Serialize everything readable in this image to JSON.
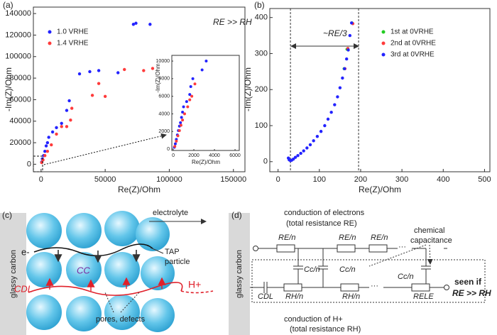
{
  "chart_data": [
    {
      "type": "scatter",
      "panel": "(a)",
      "xlabel": "Re(Z)/Ohm",
      "ylabel": "-Im(Z)/Ohm",
      "annotation": "RE >> RH",
      "xlim": [
        -6000,
        159000
      ],
      "ylim": [
        -7000,
        146000
      ],
      "xticks": [
        0,
        50000,
        100000,
        150000
      ],
      "yticks": [
        0,
        20000,
        40000,
        60000,
        80000,
        100000,
        120000,
        140000
      ],
      "legend": "upper left",
      "series": [
        {
          "name": "1.0 VRHE",
          "color": "#2323ff",
          "x": [
            500,
            1000,
            2000,
            3000,
            4000,
            5000,
            6000,
            9000,
            12000,
            16000,
            20000,
            22000,
            30000,
            38000,
            45000,
            60000,
            72000,
            74000,
            85000
          ],
          "values": [
            2000,
            5000,
            8000,
            12000,
            17000,
            20000,
            25000,
            30000,
            34000,
            38000,
            50000,
            59000,
            84000,
            86000,
            87000,
            85000,
            130000,
            131000,
            130000
          ]
        },
        {
          "name": "1.4 VRHE",
          "color": "#ff3b3b",
          "x": [
            500,
            1500,
            3000,
            5000,
            8000,
            12000,
            16000,
            20000,
            23000,
            24000,
            40000,
            45000,
            50000,
            65000,
            80000,
            87000
          ],
          "values": [
            1500,
            4000,
            8000,
            12000,
            18000,
            28000,
            35000,
            35000,
            41000,
            52000,
            64000,
            75000,
            63000,
            88000,
            87000,
            89000
          ]
        }
      ]
    },
    {
      "type": "scatter",
      "xlabel": "Re(Z)/Ohm",
      "ylabel": "-Im(Z)/Ohm",
      "xlim": [
        -140,
        6410
      ],
      "ylim": [
        -160,
        10650
      ],
      "xticks": [
        0,
        2000,
        4000,
        6000
      ],
      "yticks": [
        0,
        2000,
        4000,
        6000,
        8000,
        10000
      ],
      "series": [
        {
          "color": "#2323ff",
          "x": [
            100,
            200,
            300,
            400,
            500,
            600,
            700,
            800,
            900,
            1000,
            1300,
            1600,
            1700,
            1900,
            2800,
            3200
          ],
          "values": [
            200,
            600,
            1100,
            1600,
            2100,
            2600,
            3000,
            3600,
            4200,
            4800,
            5400,
            6200,
            7100,
            8000,
            9000,
            10000
          ]
        },
        {
          "color": "#ff3b3b",
          "x": [
            150,
            300,
            450,
            600,
            750,
            900,
            1100,
            1400,
            1600,
            1800,
            2100
          ],
          "values": [
            300,
            900,
            1500,
            2100,
            2700,
            3300,
            4000,
            4800,
            5600,
            6000,
            7400
          ]
        }
      ]
    },
    {
      "type": "scatter",
      "panel": "(b)",
      "xlabel": "Re(Z)/Ohm",
      "ylabel": "-Im(Z)/Ohm",
      "annotation": "~RE/3",
      "xlim": [
        -20,
        513
      ],
      "ylim": [
        -28,
        425
      ],
      "xticks": [
        0,
        100,
        200,
        300,
        400,
        500
      ],
      "yticks": [
        0,
        100,
        200,
        300,
        400
      ],
      "vlines": [
        30,
        195
      ],
      "legend": "upper right",
      "series": [
        {
          "name": "1st at 0VRHE",
          "color": "#22cc22",
          "x": [
            160,
            167,
            179
          ],
          "values": [
            258,
            312,
            385
          ]
        },
        {
          "name": "2nd at 0VRHE",
          "color": "#ff3b3b",
          "x": [
            162,
            169,
            181
          ],
          "values": [
            258,
            314,
            383
          ]
        },
        {
          "name": "3rd at 0VRHE",
          "color": "#2323ff",
          "x": [
            25,
            27,
            30,
            33,
            37,
            42,
            48,
            55,
            62,
            70,
            78,
            86,
            95,
            104,
            113,
            121,
            129,
            137,
            144,
            150,
            156,
            161,
            166,
            170,
            174,
            178
          ],
          "values": [
            10,
            5,
            3,
            4,
            7,
            12,
            17,
            23,
            30,
            38,
            47,
            58,
            70,
            84,
            100,
            118,
            137,
            158,
            180,
            205,
            232,
            258,
            285,
            310,
            350,
            385
          ]
        }
      ]
    }
  ],
  "diagram_c": {
    "panel": "(c)",
    "substrate": "glassy carbon",
    "electrolyte": "electrolyte",
    "electron": "e-",
    "particle": [
      "TAP",
      "particle"
    ],
    "cdl": "CDL",
    "cc": "CC",
    "proton": "H+",
    "pores": "pores, defects"
  },
  "diagram_d": {
    "panel": "(d)",
    "substrate": "glassy carbon",
    "top": [
      "conduction of electrons",
      "(total resistance RE)"
    ],
    "re": [
      "RE/n",
      "RE/n",
      "RE/n"
    ],
    "cc": [
      "Cc/n",
      "Cc/n",
      "Cc/n"
    ],
    "chem": [
      "chemical",
      "capacitance"
    ],
    "cdl": "CDL",
    "rh": [
      "RH/n",
      "RH/n"
    ],
    "rele": "RELE",
    "seen": [
      "seen if",
      "RE >> RH"
    ],
    "bottom": [
      "conduction of H+",
      "(total resistance RH)"
    ]
  }
}
